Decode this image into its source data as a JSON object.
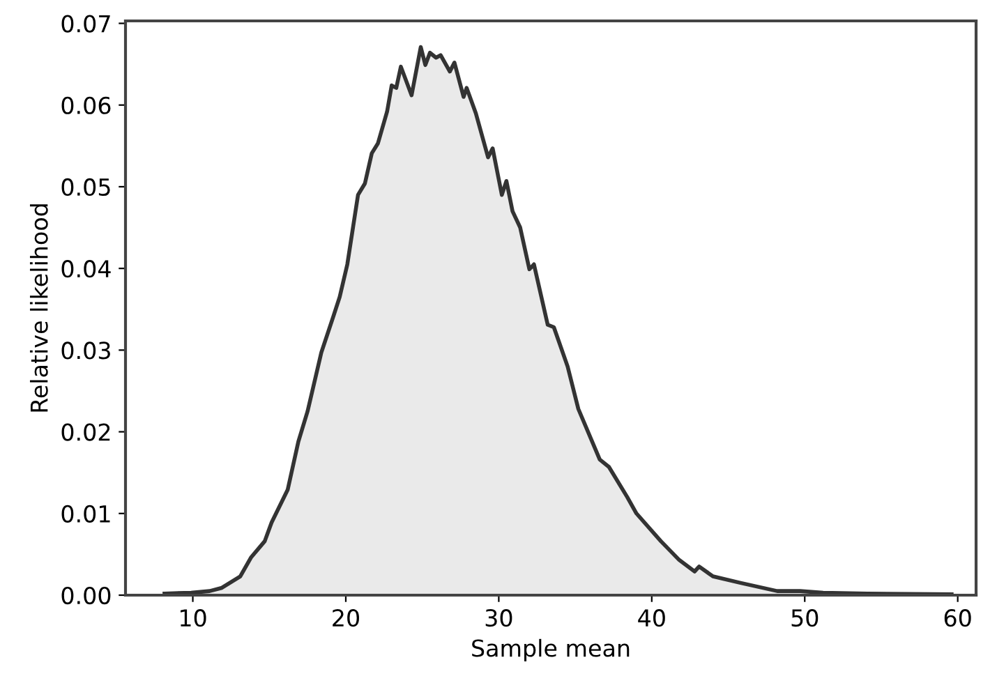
{
  "chart_data": {
    "type": "area",
    "xlabel": "Sample mean",
    "ylabel": "Relative likelihood",
    "xlim": [
      5.6,
      61.2
    ],
    "ylim": [
      0,
      0.0703
    ],
    "xticks": [
      10,
      20,
      30,
      40,
      50,
      60
    ],
    "yticks": [
      {
        "value": 0,
        "label": "0.00"
      },
      {
        "value": 0.01,
        "label": "0.01"
      },
      {
        "value": 0.02,
        "label": "0.02"
      },
      {
        "value": 0.03,
        "label": "0.03"
      },
      {
        "value": 0.04,
        "label": "0.04"
      },
      {
        "value": 0.05,
        "label": "0.05"
      },
      {
        "value": 0.06,
        "label": "0.06"
      },
      {
        "value": 0.07,
        "label": "0.07"
      }
    ],
    "grid": false,
    "series": [
      {
        "color": "#333333",
        "x": [
          8.15,
          9.9,
          11.1,
          11.9,
          13.1,
          13.8,
          14.7,
          15.15,
          16.2,
          16.9,
          17.5,
          18.4,
          19.2,
          19.6,
          20.1,
          20.8,
          21.25,
          21.7,
          22.1,
          22.7,
          23.0,
          23.3,
          23.6,
          24.3,
          24.9,
          25.2,
          25.5,
          25.9,
          26.2,
          26.8,
          27.1,
          27.7,
          27.9,
          28.5,
          29.3,
          29.6,
          30.2,
          30.5,
          30.9,
          31.4,
          32.0,
          32.3,
          33.2,
          33.6,
          34.5,
          35.2,
          36.6,
          37.2,
          38.4,
          39.0,
          40.6,
          41.8,
          42.8,
          43.1,
          44.0,
          45.8,
          48.2,
          49.7,
          51.2,
          54.1,
          59.6
        ],
        "values": [
          0.0002,
          0.0003,
          0.0005,
          0.0009,
          0.0023,
          0.0046,
          0.0066,
          0.0089,
          0.0129,
          0.0188,
          0.0225,
          0.0297,
          0.0342,
          0.0365,
          0.0405,
          0.049,
          0.0504,
          0.0541,
          0.0553,
          0.0592,
          0.0624,
          0.0621,
          0.0647,
          0.0612,
          0.0671,
          0.0649,
          0.0664,
          0.0658,
          0.0661,
          0.0641,
          0.0652,
          0.061,
          0.0621,
          0.059,
          0.0536,
          0.0547,
          0.049,
          0.0507,
          0.047,
          0.045,
          0.0399,
          0.0405,
          0.0331,
          0.0328,
          0.028,
          0.0228,
          0.0166,
          0.0157,
          0.012,
          0.01,
          0.0066,
          0.0043,
          0.0029,
          0.0035,
          0.0023,
          0.0015,
          0.0005,
          0.0005,
          0.0003,
          0.0002,
          0.0001
        ]
      }
    ]
  }
}
